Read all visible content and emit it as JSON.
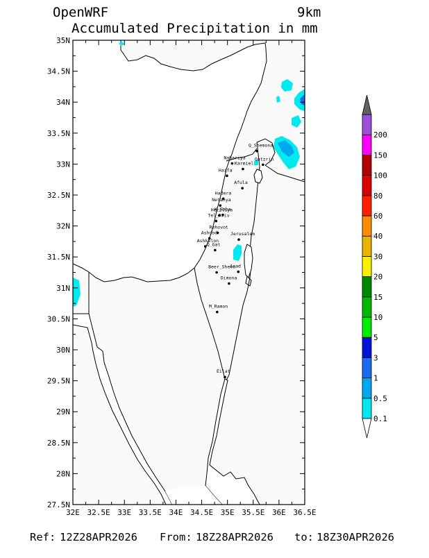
{
  "header": {
    "model": "OpenWRF",
    "resolution": "9km",
    "title": "Accumulated Precipitation in mm"
  },
  "footer": {
    "ref_label": "Ref:",
    "ref": "12Z28APR2026",
    "from_label": "From:",
    "from": "18Z28APR2026",
    "to_label": "to:",
    "to": "18Z30APR2026"
  },
  "map": {
    "lon_range": [
      32.0,
      36.5
    ],
    "lat_range": [
      27.5,
      35.0
    ],
    "lon_ticks": [
      "32E",
      "32.5E",
      "33E",
      "33.5E",
      "34E",
      "34.5E",
      "35E",
      "35.5E",
      "36E",
      "36.5E"
    ],
    "lat_ticks": [
      "27.5N",
      "28N",
      "28.5N",
      "29N",
      "29.5N",
      "30N",
      "30.5N",
      "31N",
      "31.5N",
      "32N",
      "32.5N",
      "33N",
      "33.5N",
      "34N",
      "34.5N",
      "35N"
    ],
    "cities": [
      {
        "name": "Q_Shemona",
        "lon": 35.57,
        "lat": 33.21
      },
      {
        "name": "Nahariya",
        "lon": 35.09,
        "lat": 33.01
      },
      {
        "name": "Karmiel",
        "lon": 35.3,
        "lat": 32.92
      },
      {
        "name": "Qatzrin",
        "lon": 35.69,
        "lat": 32.99
      },
      {
        "name": "Haifa",
        "lon": 34.99,
        "lat": 32.81
      },
      {
        "name": "Afula",
        "lon": 35.29,
        "lat": 32.61
      },
      {
        "name": "Hadera",
        "lon": 34.92,
        "lat": 32.44
      },
      {
        "name": "Netanya",
        "lon": 34.86,
        "lat": 32.33
      },
      {
        "name": "Herzliya",
        "lon": 34.84,
        "lat": 32.17
      },
      {
        "name": "K_Saba",
        "lon": 34.91,
        "lat": 32.18
      },
      {
        "name": "Tel_Aviv",
        "lon": 34.78,
        "lat": 32.08
      },
      {
        "name": "Rehovot",
        "lon": 34.81,
        "lat": 31.89
      },
      {
        "name": "Ashdod",
        "lon": 34.65,
        "lat": 31.8
      },
      {
        "name": "Jerusalem",
        "lon": 35.22,
        "lat": 31.78
      },
      {
        "name": "Ashkelon",
        "lon": 34.57,
        "lat": 31.67
      },
      {
        "name": "Q_Gat",
        "lon": 34.76,
        "lat": 31.61
      },
      {
        "name": "Beer_Sheva",
        "lon": 34.79,
        "lat": 31.25
      },
      {
        "name": "Arad",
        "lon": 35.21,
        "lat": 31.26
      },
      {
        "name": "Dimona",
        "lon": 35.03,
        "lat": 31.07
      },
      {
        "name": "M_Ramon",
        "lon": 34.8,
        "lat": 30.61
      },
      {
        "name": "Eilat",
        "lon": 34.95,
        "lat": 29.56
      }
    ]
  },
  "legend": {
    "levels": [
      {
        "label": "0.1",
        "color": "#00e8f0"
      },
      {
        "label": "0.5",
        "color": "#00a8f0"
      },
      {
        "label": "1",
        "color": "#1c6cf0"
      },
      {
        "label": "3",
        "color": "#0014d8"
      },
      {
        "label": "5",
        "color": "#00ec00"
      },
      {
        "label": "10",
        "color": "#00b800"
      },
      {
        "label": "15",
        "color": "#008800"
      },
      {
        "label": "20",
        "color": "#fff000"
      },
      {
        "label": "30",
        "color": "#e8b400"
      },
      {
        "label": "40",
        "color": "#ff8c00"
      },
      {
        "label": "60",
        "color": "#ff2000"
      },
      {
        "label": "80",
        "color": "#d80000"
      },
      {
        "label": "100",
        "color": "#b00000"
      },
      {
        "label": "150",
        "color": "#ff00ff"
      },
      {
        "label": "200",
        "color": "#9c50d8"
      }
    ],
    "top_color": "#606060"
  },
  "colors": {
    "land": "#fafafa",
    "sea": "#ffffff",
    "frame": "#000000"
  }
}
